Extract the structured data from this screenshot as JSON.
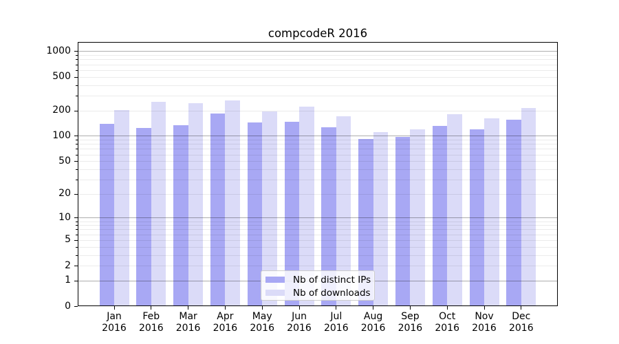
{
  "chart_data": {
    "type": "bar",
    "title": "compcodeR 2016",
    "categories": [
      "Jan 2016",
      "Feb 2016",
      "Mar 2016",
      "Apr 2016",
      "May 2016",
      "Jun 2016",
      "Jul 2016",
      "Aug 2016",
      "Sep 2016",
      "Oct 2016",
      "Nov 2016",
      "Dec 2016"
    ],
    "series": [
      {
        "name": "Nb of distinct IPs",
        "color": "#a8a8f4",
        "values": [
          138,
          123,
          134,
          184,
          145,
          148,
          126,
          92,
          98,
          132,
          120,
          156
        ]
      },
      {
        "name": "Nb of downloads",
        "color": "#dbdbf8",
        "values": [
          201,
          255,
          244,
          264,
          196,
          222,
          170,
          110,
          120,
          181,
          160,
          212
        ]
      }
    ],
    "xlabel": "",
    "ylabel": "",
    "y_axis": {
      "scale": "log1p",
      "tick_values": [
        0,
        1,
        2,
        5,
        10,
        20,
        50,
        100,
        200,
        500,
        1000
      ],
      "tick_labels": [
        "0",
        "1",
        "2",
        "5",
        "10",
        "20",
        "50",
        "100",
        "200",
        "500",
        "1000"
      ],
      "range": [
        0,
        1285
      ]
    },
    "grid": true,
    "legend_position": "bottom-center"
  },
  "colors": {
    "bar_distinct_ips": "#a8a8f4",
    "bar_downloads": "#dbdbf8",
    "major_gridline": "#adadad",
    "minor_gridline": "#ebebeb",
    "axis": "#000000",
    "legend_border": "#cccccc",
    "background": "#ffffff"
  }
}
